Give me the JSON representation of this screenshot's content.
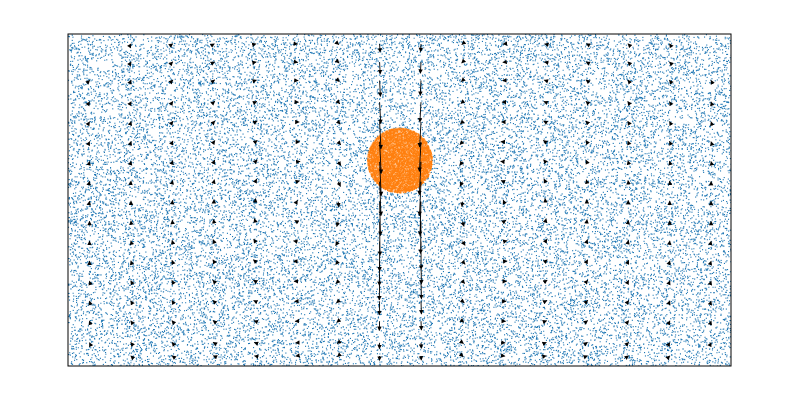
{
  "chart_data": {
    "type": "scatter",
    "title": "",
    "xlabel": "",
    "ylabel": "",
    "xlim": [
      0,
      2
    ],
    "ylim": [
      0,
      1
    ],
    "axis_ticks": false,
    "grid": false,
    "legend": false,
    "colors": {
      "fluid": "#1f77b4",
      "solid": "#ff7f0e",
      "arrows": "#000000",
      "frame": "#000000"
    },
    "series": [
      {
        "kind": "particles",
        "region": "fluid",
        "color": "#1f77b4",
        "domain": {
          "x": [
            0,
            2
          ],
          "y": [
            0,
            1
          ]
        },
        "approx_count": 28000
      },
      {
        "kind": "particles",
        "region": "solid-disk",
        "color": "#ff7f0e",
        "center": [
          1.0,
          0.62
        ],
        "radius": 0.098
      },
      {
        "kind": "quiver",
        "color": "#000000",
        "grid_x": [
          0.065,
          0.19,
          0.315,
          0.44,
          0.565,
          0.69,
          0.815,
          0.94,
          1.065,
          1.19,
          1.315,
          1.44,
          1.565,
          1.69,
          1.815,
          1.94
        ],
        "grid_y": [
          0.97,
          0.915,
          0.86,
          0.795,
          0.735,
          0.675,
          0.615,
          0.555,
          0.495,
          0.435,
          0.375,
          0.315,
          0.255,
          0.195,
          0.135,
          0.07,
          0.03
        ],
        "vortex_centers": [
          [
            0.73,
            0.48
          ],
          [
            1.27,
            0.48
          ]
        ],
        "jet_center_x": 1.0,
        "jet_halfwidth": 0.065,
        "jet_direction": "down"
      }
    ]
  }
}
